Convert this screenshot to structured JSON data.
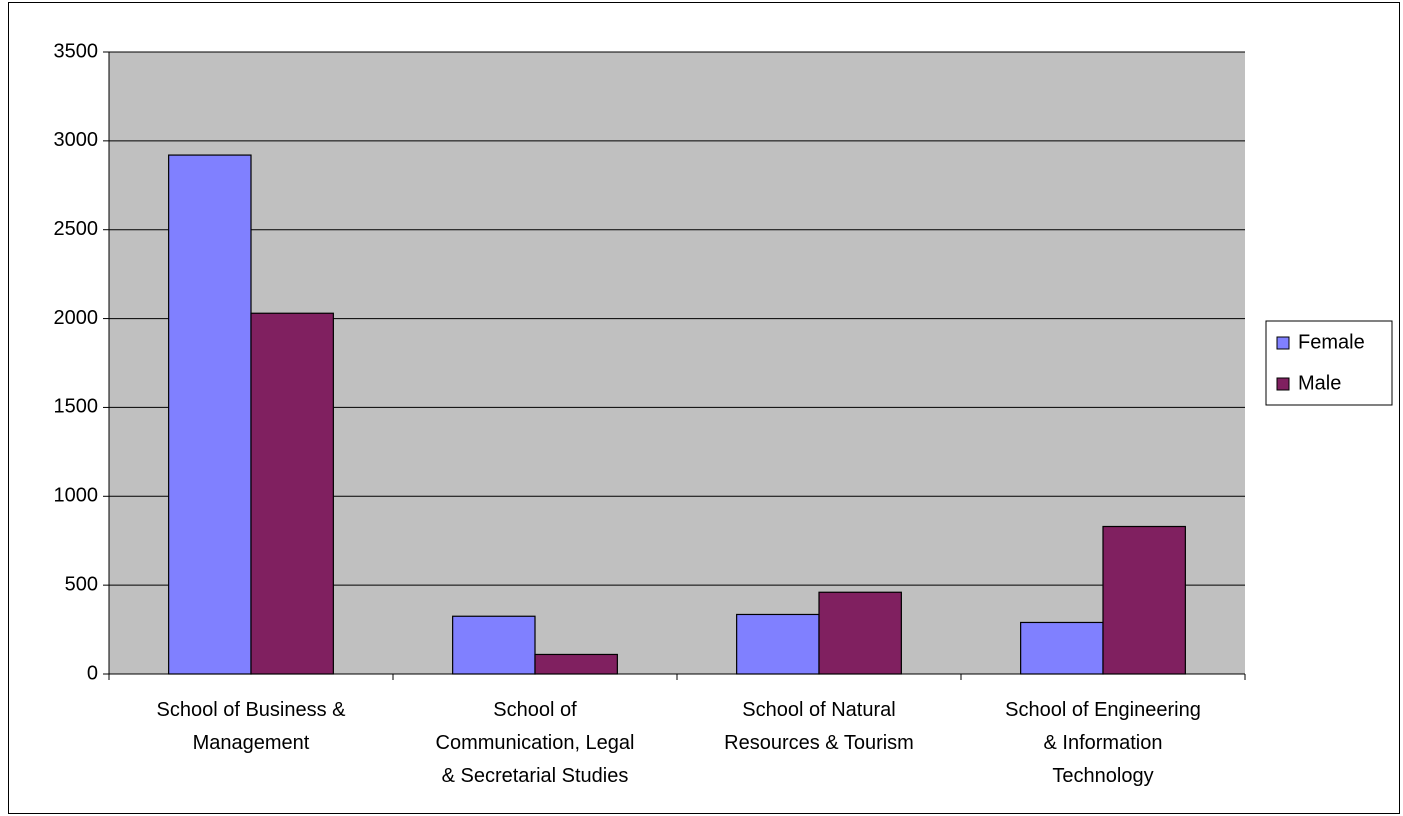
{
  "chart_data": {
    "type": "bar",
    "categories": [
      [
        "School of Business &",
        "Management"
      ],
      [
        "School of",
        "Communication, Legal",
        "& Secretarial Studies"
      ],
      [
        "School of Natural",
        "Resources & Tourism"
      ],
      [
        "School of Engineering",
        "& Information",
        "Technology"
      ]
    ],
    "series": [
      {
        "name": "Female",
        "values": [
          2920,
          325,
          335,
          290
        ]
      },
      {
        "name": "Male",
        "values": [
          2030,
          110,
          460,
          830
        ]
      }
    ],
    "ylim": [
      0,
      3500
    ],
    "yticks": [
      0,
      500,
      1000,
      1500,
      2000,
      2500,
      3000,
      3500
    ],
    "grid": true,
    "legend_position": "right",
    "colors": {
      "plot_background": "#C0C0C0",
      "Female": "#8080FF",
      "Male": "#802060",
      "gridline": "#000000"
    }
  }
}
